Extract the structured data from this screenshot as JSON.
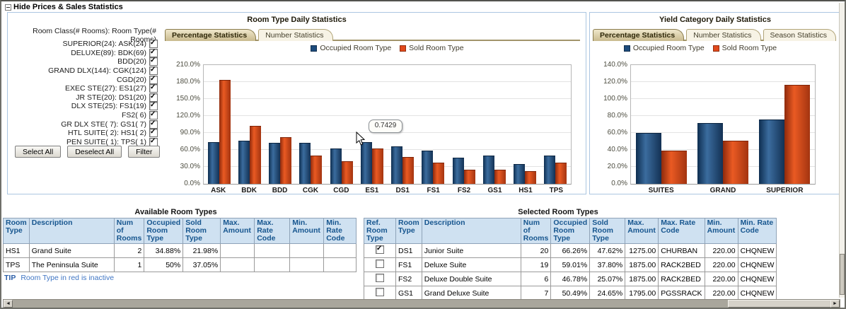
{
  "header": {
    "title": "Hide Prices & Sales Statistics"
  },
  "colors": {
    "occupied": "#1d4b7c",
    "sold": "#e1491b",
    "room_code_green": "#0b7d0b",
    "tip_blue": "#4076c4"
  },
  "filter_panel": {
    "label": "Room Class(# Rooms): Room Type(# Rooms)",
    "items": [
      {
        "label": "SUPERIOR(24): ASK(24)",
        "checked": true
      },
      {
        "label": "DELUXE(89): BDK(69)",
        "checked": true
      },
      {
        "label": "BDD(20)",
        "checked": true
      },
      {
        "label": "GRAND DLX(144): CGK(124)",
        "checked": true
      },
      {
        "label": "CGD(20)",
        "checked": true
      },
      {
        "label": "EXEC STE(27): ES1(27)",
        "checked": true
      },
      {
        "label": "JR STE(20): DS1(20)",
        "checked": true
      },
      {
        "label": "DLX STE(25): FS1(19)",
        "checked": true
      },
      {
        "label": "FS2( 6)",
        "checked": true
      },
      {
        "label": "GR DLX STE( 7): GS1( 7)",
        "checked": true
      },
      {
        "label": "HTL SUITE( 2): HS1( 2)",
        "checked": true
      },
      {
        "label": "PEN SUITE( 1): TPS( 1)",
        "checked": true
      }
    ],
    "buttons": [
      "Select All",
      "Deselect All",
      "Filter"
    ]
  },
  "chart_data": [
    {
      "type": "bar",
      "title": "Room Type Daily Statistics",
      "tabs": [
        "Percentage Statistics",
        "Number Statistics"
      ],
      "active_tab": 0,
      "tooltip": "0.7429",
      "categories": [
        "ASK",
        "BDK",
        "BDD",
        "CGK",
        "CGD",
        "ES1",
        "DS1",
        "FS1",
        "FS2",
        "GS1",
        "HS1",
        "TPS"
      ],
      "series": [
        {
          "name": "Occupied Room Type",
          "color": "#1d4b7c",
          "values": [
            73.5,
            76,
            72,
            72,
            62,
            74.29,
            66.26,
            59.01,
            46.78,
            50.49,
            34.88,
            50
          ]
        },
        {
          "name": "Sold Room Type",
          "color": "#e1491b",
          "values": [
            183.5,
            103,
            83,
            50,
            40,
            62.5,
            47.62,
            37.8,
            25.07,
            24.65,
            21.98,
            37.05
          ]
        }
      ],
      "ylim": [
        0,
        210
      ],
      "yticks": [
        {
          "value": 210,
          "label": "210.0%"
        },
        {
          "value": 180,
          "label": "180.0%"
        },
        {
          "value": 150,
          "label": "150.0%"
        },
        {
          "value": 120,
          "label": "120.0%"
        },
        {
          "value": 90,
          "label": "90.0%"
        },
        {
          "value": 60,
          "label": "60.0%"
        },
        {
          "value": 30,
          "label": "30.0%"
        },
        {
          "value": 0,
          "label": "0.0%"
        }
      ],
      "legend_position": "top",
      "grid": true
    },
    {
      "type": "bar",
      "title": "Yield Category Daily Statistics",
      "tabs": [
        "Percentage Statistics",
        "Number Statistics",
        "Season Statistics"
      ],
      "active_tab": 0,
      "categories": [
        "SUITES",
        "GRAND",
        "SUPERIOR"
      ],
      "series": [
        {
          "name": "Occupied Room Type",
          "color": "#1d4b7c",
          "values": [
            60,
            72,
            75.5
          ]
        },
        {
          "name": "Sold Room Type",
          "color": "#e1491b",
          "values": [
            39,
            51,
            116.5
          ]
        }
      ],
      "ylim": [
        0,
        140
      ],
      "yticks": [
        {
          "value": 140,
          "label": "140.0%"
        },
        {
          "value": 120,
          "label": "120.0%"
        },
        {
          "value": 100,
          "label": "100.0%"
        },
        {
          "value": 80,
          "label": "80.0%"
        },
        {
          "value": 60,
          "label": "60.0%"
        },
        {
          "value": 40,
          "label": "40.0%"
        },
        {
          "value": 20,
          "label": "20.0%"
        },
        {
          "value": 0,
          "label": "0.0%"
        }
      ],
      "legend_position": "top",
      "grid": true
    }
  ],
  "available_table": {
    "title": "Available Room Types",
    "columns": [
      {
        "key": "room_type",
        "label": "Room Type",
        "width": 34,
        "align": "left",
        "cls": "code"
      },
      {
        "key": "description",
        "label": "Description",
        "width": 120,
        "align": "left"
      },
      {
        "key": "num_rooms",
        "label": "Num of Rooms",
        "width": 36,
        "align": "right"
      },
      {
        "key": "occupied",
        "label": "Occupied Room Type",
        "width": 54,
        "align": "right"
      },
      {
        "key": "sold",
        "label": "Sold Room Type",
        "width": 53,
        "align": "right"
      },
      {
        "key": "max_amount",
        "label": "Max. Amount",
        "width": 48,
        "align": "right"
      },
      {
        "key": "max_rate_code",
        "label": "Max. Rate Code",
        "width": 50,
        "align": "left"
      },
      {
        "key": "min_amount",
        "label": "Min. Amount",
        "width": 48,
        "align": "right"
      },
      {
        "key": "min_rate_code",
        "label": "Min. Rate Code",
        "width": 46,
        "align": "left"
      }
    ],
    "rows": [
      {
        "room_type": "HS1",
        "description": "Grand Suite",
        "num_rooms": "2",
        "occupied": "34.88%",
        "sold": "21.98%",
        "max_amount": "",
        "max_rate_code": "",
        "min_amount": "",
        "min_rate_code": ""
      },
      {
        "room_type": "TPS",
        "description": "The Peninsula Suite",
        "num_rooms": "1",
        "occupied": "50%",
        "sold": "37.05%",
        "max_amount": "",
        "max_rate_code": "",
        "min_amount": "",
        "min_rate_code": ""
      }
    ]
  },
  "selected_table": {
    "title": "Selected Room Types",
    "columns": [
      {
        "key": "ref",
        "label": "Ref. Room Type",
        "width": 45,
        "align": "center",
        "type": "check"
      },
      {
        "key": "room_type",
        "label": "Room Type",
        "width": 33,
        "align": "left",
        "cls": "code"
      },
      {
        "key": "description",
        "label": "Description",
        "width": 140,
        "align": "left"
      },
      {
        "key": "num_rooms",
        "label": "Num of Rooms",
        "width": 36,
        "align": "right"
      },
      {
        "key": "occupied",
        "label": "Occupied Room Type",
        "width": 52,
        "align": "right"
      },
      {
        "key": "sold",
        "label": "Sold Room Type",
        "width": 50,
        "align": "right"
      },
      {
        "key": "max_amount",
        "label": "Max. Amount",
        "width": 47,
        "align": "right"
      },
      {
        "key": "max_rate_code",
        "label": "Max. Rate Code",
        "width": 50,
        "align": "left"
      },
      {
        "key": "min_amount",
        "label": "Min. Amount",
        "width": 47,
        "align": "right"
      },
      {
        "key": "min_rate_code",
        "label": "Min. Rate Code",
        "width": 50,
        "align": "left"
      }
    ],
    "rows": [
      {
        "ref": true,
        "room_type": "DS1",
        "description": "Junior Suite",
        "num_rooms": "20",
        "occupied": "66.26%",
        "sold": "47.62%",
        "max_amount": "1275.00",
        "max_rate_code": "CHURBAN",
        "min_amount": "220.00",
        "min_rate_code": "CHQNEW"
      },
      {
        "ref": false,
        "room_type": "FS1",
        "description": "Deluxe Suite",
        "num_rooms": "19",
        "occupied": "59.01%",
        "sold": "37.80%",
        "max_amount": "1875.00",
        "max_rate_code": "RACK2BED",
        "min_amount": "220.00",
        "min_rate_code": "CHQNEW"
      },
      {
        "ref": false,
        "room_type": "FS2",
        "description": "Deluxe Double Suite",
        "num_rooms": "6",
        "occupied": "46.78%",
        "sold": "25.07%",
        "max_amount": "1875.00",
        "max_rate_code": "RACK2BED",
        "min_amount": "220.00",
        "min_rate_code": "CHQNEW"
      },
      {
        "ref": false,
        "room_type": "GS1",
        "description": "Grand Deluxe Suite",
        "num_rooms": "7",
        "occupied": "50.49%",
        "sold": "24.65%",
        "max_amount": "1795.00",
        "max_rate_code": "PGSSRACK",
        "min_amount": "220.00",
        "min_rate_code": "CHQNEW"
      }
    ]
  },
  "tip": {
    "label": "TIP",
    "text": "Room Type in red is inactive"
  }
}
